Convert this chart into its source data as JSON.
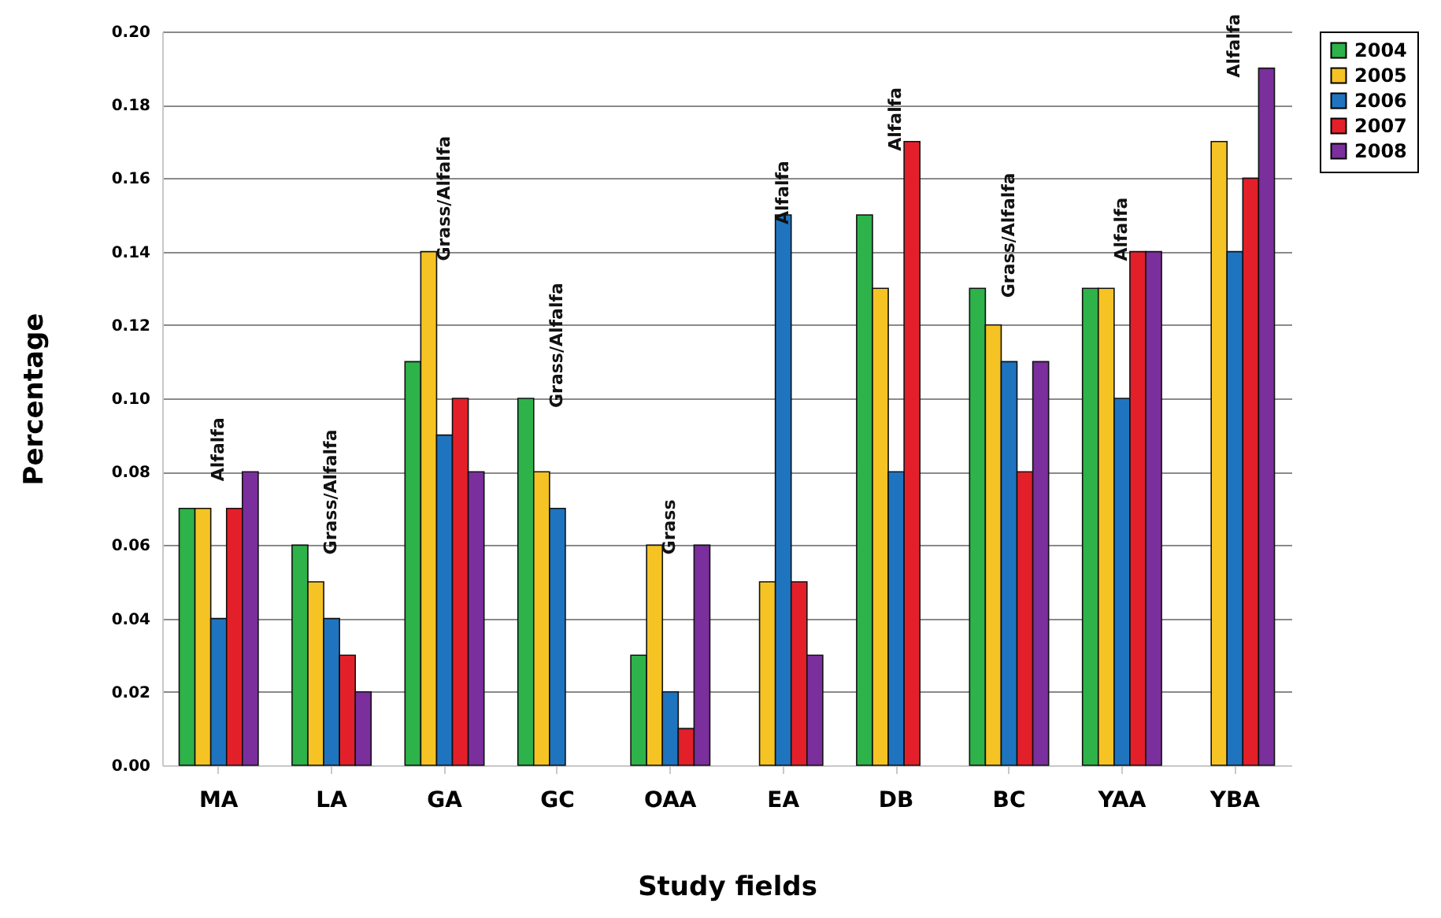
{
  "chart_data": {
    "type": "bar",
    "xlabel": "Study fields",
    "ylabel": "Percentage",
    "categories": [
      "MA",
      "LA",
      "GA",
      "GC",
      "OAA",
      "EA",
      "DB",
      "BC",
      "YAA",
      "YBA"
    ],
    "series": [
      {
        "name": "2004",
        "color": "#2eb24a",
        "values": [
          0.07,
          0.06,
          0.11,
          0.1,
          0.03,
          null,
          0.15,
          0.13,
          0.13,
          null
        ]
      },
      {
        "name": "2005",
        "color": "#f5c323",
        "values": [
          0.07,
          0.05,
          0.14,
          0.08,
          0.06,
          0.05,
          0.13,
          0.12,
          0.13,
          0.17
        ]
      },
      {
        "name": "2006",
        "color": "#1f74c0",
        "values": [
          0.04,
          0.04,
          0.09,
          0.07,
          0.02,
          0.15,
          0.08,
          0.11,
          0.1,
          0.14
        ]
      },
      {
        "name": "2007",
        "color": "#e3202a",
        "values": [
          0.07,
          0.03,
          0.1,
          null,
          0.01,
          0.05,
          0.17,
          0.08,
          0.14,
          0.16
        ]
      },
      {
        "name": "2008",
        "color": "#7a2f9c",
        "values": [
          0.08,
          0.02,
          0.08,
          null,
          0.06,
          0.03,
          null,
          0.11,
          0.14,
          0.19
        ]
      }
    ],
    "ylim": [
      0,
      0.2
    ],
    "yticks": [
      {
        "value": 0,
        "label": "0.00"
      },
      {
        "value": 0.02,
        "label": "0.02"
      },
      {
        "value": 0.04,
        "label": "0.04"
      },
      {
        "value": 0.06,
        "label": "0.06"
      },
      {
        "value": 0.08,
        "label": "0.08"
      },
      {
        "value": 0.1,
        "label": "0.10"
      },
      {
        "value": 0.12,
        "label": "0.12"
      },
      {
        "value": 0.14,
        "label": "0.14"
      },
      {
        "value": 0.16,
        "label": "0.16"
      },
      {
        "value": 0.18,
        "label": "0.18"
      },
      {
        "value": 0.2,
        "label": "0.20"
      }
    ],
    "grid": "y",
    "legend": "right",
    "annotations": [
      "Alfalfa",
      "Grass/Alfalfa",
      "Grass/Alfalfa",
      "Grass/Alfalfa",
      "Grass",
      "Alfalfa",
      "Alfalfa",
      "Grass/Alfalfa",
      "Alfalfa",
      "Alfalfa"
    ]
  }
}
